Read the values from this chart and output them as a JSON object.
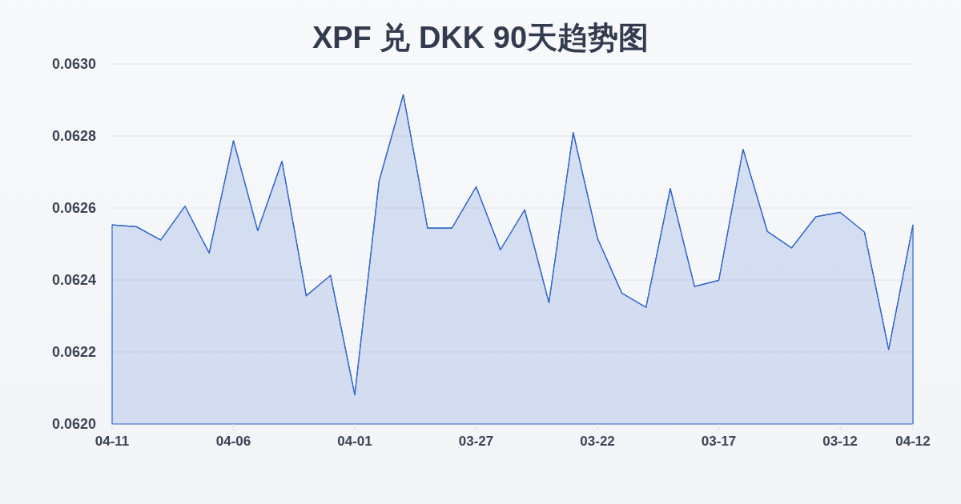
{
  "chart_data": {
    "type": "area",
    "title": "XPF 兑 DKK 90天趋势图",
    "categories": [
      "04-11",
      null,
      null,
      null,
      null,
      "04-06",
      null,
      null,
      null,
      null,
      "04-01",
      null,
      null,
      null,
      null,
      "03-27",
      null,
      null,
      null,
      null,
      "03-22",
      null,
      null,
      null,
      null,
      "03-17",
      null,
      null,
      null,
      null,
      "03-12",
      null,
      null,
      "04-12"
    ],
    "series": [
      {
        "color": "#3366cc",
        "values": [
          0.062553,
          0.062548,
          0.062511,
          0.062605,
          0.062475,
          0.062787,
          0.062537,
          0.06273,
          0.062356,
          0.062413,
          0.062081,
          0.062674,
          0.062915,
          0.062544,
          0.062544,
          0.062659,
          0.062484,
          0.062595,
          0.062337,
          0.06281,
          0.062516,
          0.062364,
          0.062324,
          0.062654,
          0.062382,
          0.062399,
          0.062763,
          0.062535,
          0.062489,
          0.062576,
          0.062588,
          0.062533,
          0.062207,
          0.062553
        ]
      }
    ],
    "ylim": [
      0.062,
      0.063
    ],
    "yticks": [
      {
        "value": 0.062,
        "label": "0.0620"
      },
      {
        "value": 0.0622,
        "label": "0.0622"
      },
      {
        "value": 0.0624,
        "label": "0.0624"
      },
      {
        "value": 0.0626,
        "label": "0.0626"
      },
      {
        "value": 0.0628,
        "label": "0.0628"
      },
      {
        "value": 0.063,
        "label": "0.0630"
      }
    ],
    "grid": "y"
  }
}
